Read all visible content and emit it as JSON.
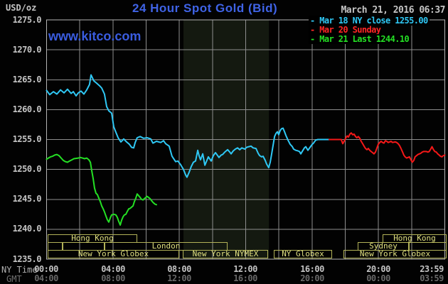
{
  "header": {
    "unit_label": "USD/oz",
    "title": "24 Hour Spot Gold (Bid)",
    "datetime": "March 21, 2016 06:37",
    "watermark": "www.kitco.com"
  },
  "legend": [
    {
      "marker": "-",
      "label": "Mar 18 NY close 1255.00",
      "color": "#2fc8f5"
    },
    {
      "marker": "-",
      "label": "Mar 20 Sunday",
      "color": "#ff2626"
    },
    {
      "marker": "-",
      "label": "Mar 21 Last 1244.10",
      "color": "#24e024"
    }
  ],
  "axes": {
    "y_ticks": [
      "1275.0",
      "1270.0",
      "1265.0",
      "1260.0",
      "1255.0",
      "1250.0",
      "1245.0",
      "1240.0",
      "1235.0"
    ],
    "x_ny_ticks": [
      "00:00",
      "04:00",
      "08:00",
      "12:00",
      "16:00",
      "20:00",
      "23:59"
    ],
    "x_gmt_ticks": [
      "04:00",
      "08:00",
      "12:00",
      "16:00",
      "20:00",
      "00:00",
      "03:59"
    ],
    "ny_axis_label": "NY Time",
    "gmt_axis_label": "GMT"
  },
  "sessions": [
    {
      "label": "Hong Kong"
    },
    {
      "label": "Hong Kong"
    },
    {
      "label": ""
    },
    {
      "label": ""
    },
    {
      "label": "London"
    },
    {
      "label": "Sydney"
    },
    {
      "label": ""
    },
    {
      "label": "New York Globex"
    },
    {
      "label": "New York NYMEX"
    },
    {
      "label": "NY Globex"
    },
    {
      "label": "New York Globex"
    }
  ],
  "chart_data": {
    "type": "line",
    "title": "24 Hour Spot Gold (Bid)",
    "ylabel": "USD/oz",
    "xlabel": "NY Time (hours 0-24) / GMT",
    "ylim": [
      1235,
      1275
    ],
    "xlim": [
      0,
      24
    ],
    "y_step": 5,
    "x_step": 2,
    "grid_on": true,
    "grid_color": "#8e8e8e",
    "border_color": "#b5b5b5",
    "highlight_band": [
      8.25,
      13.4
    ],
    "highlight_band_name": "New York NYMEX session",
    "highlight_color": "#141910",
    "prev_close": 1255.0,
    "last_price": 1244.1,
    "legend_position": "top-right",
    "series": [
      {
        "name": "Mar 18 NY close 1255.00",
        "color": "#2fc8f5",
        "points": [
          [
            0,
            1263.2
          ],
          [
            0.19,
            1262.5
          ],
          [
            0.41,
            1263
          ],
          [
            0.62,
            1262.6
          ],
          [
            0.84,
            1263.3
          ],
          [
            1.05,
            1262.8
          ],
          [
            1.26,
            1263.4
          ],
          [
            1.48,
            1262.7
          ],
          [
            1.61,
            1263
          ],
          [
            1.78,
            1262.3
          ],
          [
            1.91,
            1262.8
          ],
          [
            2.08,
            1263.1
          ],
          [
            2.25,
            1262.6
          ],
          [
            2.42,
            1263.3
          ],
          [
            2.59,
            1264.2
          ],
          [
            2.68,
            1265.8
          ],
          [
            2.85,
            1264.8
          ],
          [
            3.02,
            1264.4
          ],
          [
            3.19,
            1264
          ],
          [
            3.32,
            1263.6
          ],
          [
            3.49,
            1262.6
          ],
          [
            3.62,
            1260.5
          ],
          [
            3.75,
            1259.8
          ],
          [
            3.92,
            1259.4
          ],
          [
            4.05,
            1257.1
          ],
          [
            4.18,
            1256.2
          ],
          [
            4.31,
            1255.3
          ],
          [
            4.48,
            1254.6
          ],
          [
            4.65,
            1255.1
          ],
          [
            4.82,
            1254.6
          ],
          [
            4.99,
            1254.2
          ],
          [
            5.12,
            1253.7
          ],
          [
            5.25,
            1253.6
          ],
          [
            5.34,
            1254.5
          ],
          [
            5.46,
            1255.3
          ],
          [
            5.64,
            1255.5
          ],
          [
            5.85,
            1255.2
          ],
          [
            6.06,
            1255.3
          ],
          [
            6.28,
            1255.1
          ],
          [
            6.41,
            1254.4
          ],
          [
            6.62,
            1254.7
          ],
          [
            6.88,
            1254.5
          ],
          [
            7.05,
            1254.8
          ],
          [
            7.18,
            1254.3
          ],
          [
            7.39,
            1253.9
          ],
          [
            7.56,
            1252.2
          ],
          [
            7.78,
            1251.3
          ],
          [
            7.91,
            1251.4
          ],
          [
            8.08,
            1250.8
          ],
          [
            8.25,
            1250
          ],
          [
            8.38,
            1249.1
          ],
          [
            8.46,
            1248.7
          ],
          [
            8.59,
            1249.5
          ],
          [
            8.72,
            1250.5
          ],
          [
            8.85,
            1251.2
          ],
          [
            8.98,
            1251.4
          ],
          [
            9.11,
            1253.2
          ],
          [
            9.19,
            1252.3
          ],
          [
            9.28,
            1251.6
          ],
          [
            9.41,
            1252.6
          ],
          [
            9.54,
            1250.7
          ],
          [
            9.66,
            1251.5
          ],
          [
            9.75,
            1252.1
          ],
          [
            9.92,
            1251.4
          ],
          [
            10.05,
            1252.3
          ],
          [
            10.18,
            1252.8
          ],
          [
            10.31,
            1252.3
          ],
          [
            10.39,
            1252
          ],
          [
            10.52,
            1252.4
          ],
          [
            10.61,
            1252.5
          ],
          [
            10.74,
            1252.9
          ],
          [
            10.91,
            1253.3
          ],
          [
            11.04,
            1252.9
          ],
          [
            11.12,
            1252.6
          ],
          [
            11.25,
            1253.1
          ],
          [
            11.38,
            1253.4
          ],
          [
            11.51,
            1253.6
          ],
          [
            11.64,
            1253.3
          ],
          [
            11.77,
            1253.6
          ],
          [
            11.94,
            1253.4
          ],
          [
            12.06,
            1253.7
          ],
          [
            12.19,
            1253.8
          ],
          [
            12.32,
            1253.9
          ],
          [
            12.45,
            1253.6
          ],
          [
            12.62,
            1253.5
          ],
          [
            12.75,
            1252.7
          ],
          [
            12.84,
            1252.3
          ],
          [
            12.96,
            1252.1
          ],
          [
            13.05,
            1252.2
          ],
          [
            13.18,
            1251.5
          ],
          [
            13.26,
            1250.9
          ],
          [
            13.39,
            1250.3
          ],
          [
            13.48,
            1251.2
          ],
          [
            13.56,
            1252.5
          ],
          [
            13.65,
            1254
          ],
          [
            13.74,
            1255.5
          ],
          [
            13.82,
            1256
          ],
          [
            13.91,
            1256.3
          ],
          [
            13.99,
            1255.8
          ],
          [
            14.08,
            1256.5
          ],
          [
            14.16,
            1256.8
          ],
          [
            14.25,
            1256.9
          ],
          [
            14.34,
            1256.3
          ],
          [
            14.42,
            1255.7
          ],
          [
            14.55,
            1254.9
          ],
          [
            14.68,
            1254.2
          ],
          [
            14.81,
            1253.8
          ],
          [
            14.89,
            1253.4
          ],
          [
            15.02,
            1253.2
          ],
          [
            15.15,
            1253.1
          ],
          [
            15.24,
            1253
          ],
          [
            15.32,
            1252.6
          ],
          [
            15.45,
            1253.2
          ],
          [
            15.54,
            1253.6
          ],
          [
            15.62,
            1253.8
          ],
          [
            15.75,
            1253.2
          ],
          [
            15.88,
            1253.7
          ],
          [
            16.01,
            1254.2
          ],
          [
            16.09,
            1254.4
          ],
          [
            16.22,
            1254.9
          ],
          [
            16.35,
            1255
          ],
          [
            16.61,
            1255
          ],
          [
            16.91,
            1255
          ],
          [
            17.03,
            1255
          ]
        ]
      },
      {
        "name": "Mar 20 Sunday",
        "color": "#f51818",
        "points": [
          [
            17.03,
            1255
          ],
          [
            17.5,
            1255
          ],
          [
            17.76,
            1255
          ],
          [
            17.85,
            1254.3
          ],
          [
            17.93,
            1254.7
          ],
          [
            18.02,
            1255.2
          ],
          [
            18.11,
            1255.6
          ],
          [
            18.19,
            1255.4
          ],
          [
            18.28,
            1255.9
          ],
          [
            18.36,
            1256.1
          ],
          [
            18.45,
            1255.8
          ],
          [
            18.53,
            1255.9
          ],
          [
            18.62,
            1255.5
          ],
          [
            18.7,
            1255.3
          ],
          [
            18.79,
            1255.5
          ],
          [
            18.88,
            1255.2
          ],
          [
            18.96,
            1254.7
          ],
          [
            19.05,
            1254.3
          ],
          [
            19.13,
            1253.9
          ],
          [
            19.22,
            1253.5
          ],
          [
            19.31,
            1253.3
          ],
          [
            19.39,
            1253.5
          ],
          [
            19.48,
            1253.2
          ],
          [
            19.56,
            1253
          ],
          [
            19.65,
            1252.8
          ],
          [
            19.73,
            1252.6
          ],
          [
            19.82,
            1252.9
          ],
          [
            19.9,
            1253.5
          ],
          [
            19.99,
            1254.2
          ],
          [
            20.08,
            1254.5
          ],
          [
            20.16,
            1254.7
          ],
          [
            20.25,
            1254.5
          ],
          [
            20.33,
            1254.4
          ],
          [
            20.42,
            1254.8
          ],
          [
            20.5,
            1254.7
          ],
          [
            20.59,
            1254.5
          ],
          [
            20.67,
            1254.6
          ],
          [
            20.76,
            1254.7
          ],
          [
            20.85,
            1254.5
          ],
          [
            21.02,
            1254.6
          ],
          [
            21.1,
            1254.5
          ],
          [
            21.19,
            1254.3
          ],
          [
            21.27,
            1254
          ],
          [
            21.36,
            1253.5
          ],
          [
            21.44,
            1253
          ],
          [
            21.53,
            1252.4
          ],
          [
            21.61,
            1252.1
          ],
          [
            21.7,
            1251.9
          ],
          [
            21.78,
            1252
          ],
          [
            21.87,
            1252.1
          ],
          [
            21.96,
            1251.6
          ],
          [
            22.04,
            1251.2
          ],
          [
            22.13,
            1251.5
          ],
          [
            22.21,
            1252.1
          ],
          [
            22.3,
            1252.3
          ],
          [
            22.38,
            1252.5
          ],
          [
            22.47,
            1252.6
          ],
          [
            22.55,
            1252.7
          ],
          [
            22.64,
            1252.9
          ],
          [
            22.72,
            1253
          ],
          [
            22.89,
            1253
          ],
          [
            22.98,
            1252.9
          ],
          [
            23.06,
            1253
          ],
          [
            23.15,
            1253.4
          ],
          [
            23.23,
            1253.8
          ],
          [
            23.32,
            1253.3
          ],
          [
            23.4,
            1253
          ],
          [
            23.49,
            1252.9
          ],
          [
            23.57,
            1252.6
          ],
          [
            23.66,
            1252.4
          ],
          [
            23.74,
            1252.2
          ],
          [
            23.83,
            1252.1
          ],
          [
            23.91,
            1252.3
          ],
          [
            24,
            1252.4
          ]
        ]
      },
      {
        "name": "Mar 21 Last 1244.10",
        "color": "#24e024",
        "points": [
          [
            0,
            1251.7
          ],
          [
            0.11,
            1251.9
          ],
          [
            0.24,
            1252.1
          ],
          [
            0.36,
            1252.2
          ],
          [
            0.49,
            1252.4
          ],
          [
            0.62,
            1252.5
          ],
          [
            0.75,
            1252.3
          ],
          [
            0.88,
            1251.9
          ],
          [
            1.01,
            1251.5
          ],
          [
            1.14,
            1251.3
          ],
          [
            1.26,
            1251.2
          ],
          [
            1.39,
            1251.4
          ],
          [
            1.52,
            1251.6
          ],
          [
            1.65,
            1251.8
          ],
          [
            1.91,
            1251.9
          ],
          [
            2.04,
            1252
          ],
          [
            2.16,
            1251.9
          ],
          [
            2.29,
            1251.8
          ],
          [
            2.42,
            1251.9
          ],
          [
            2.55,
            1251.6
          ],
          [
            2.64,
            1251.2
          ],
          [
            2.72,
            1249.8
          ],
          [
            2.81,
            1248.4
          ],
          [
            2.89,
            1246.9
          ],
          [
            2.98,
            1246
          ],
          [
            3.06,
            1245.8
          ],
          [
            3.15,
            1245.2
          ],
          [
            3.24,
            1244.6
          ],
          [
            3.32,
            1243.9
          ],
          [
            3.41,
            1243.4
          ],
          [
            3.49,
            1242.9
          ],
          [
            3.58,
            1242.2
          ],
          [
            3.66,
            1241.6
          ],
          [
            3.75,
            1241.2
          ],
          [
            3.84,
            1241.9
          ],
          [
            3.92,
            1242.4
          ],
          [
            4.05,
            1242.5
          ],
          [
            4.18,
            1242.4
          ],
          [
            4.26,
            1242
          ],
          [
            4.35,
            1241.3
          ],
          [
            4.44,
            1240.7
          ],
          [
            4.52,
            1241.5
          ],
          [
            4.61,
            1242.1
          ],
          [
            4.69,
            1242.4
          ],
          [
            4.78,
            1242.5
          ],
          [
            4.87,
            1243
          ],
          [
            4.95,
            1243.4
          ],
          [
            5.04,
            1243.5
          ],
          [
            5.12,
            1243.7
          ],
          [
            5.21,
            1243.9
          ],
          [
            5.29,
            1244.6
          ],
          [
            5.38,
            1245.2
          ],
          [
            5.46,
            1245.9
          ],
          [
            5.55,
            1245.6
          ],
          [
            5.64,
            1245.3
          ],
          [
            5.72,
            1245
          ],
          [
            5.81,
            1244.9
          ],
          [
            5.89,
            1245.1
          ],
          [
            5.98,
            1245.3
          ],
          [
            6.06,
            1245.5
          ],
          [
            6.15,
            1245.3
          ],
          [
            6.24,
            1245.1
          ],
          [
            6.32,
            1244.8
          ],
          [
            6.41,
            1244.5
          ],
          [
            6.53,
            1244.2
          ],
          [
            6.62,
            1244.1
          ]
        ]
      }
    ]
  }
}
